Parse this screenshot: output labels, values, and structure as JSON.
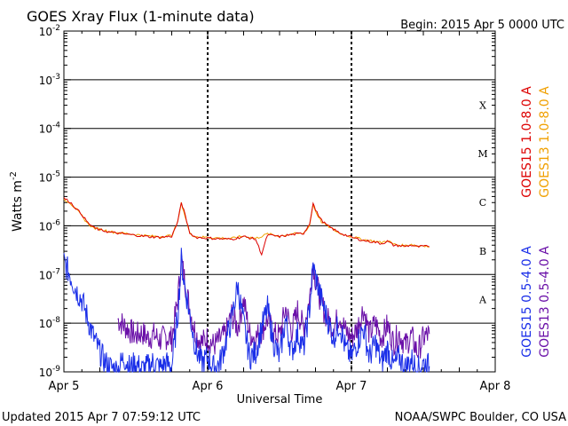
{
  "header": {
    "title": "GOES Xray Flux (1-minute data)",
    "begin": "Begin:  2015 Apr 5 0000 UTC"
  },
  "footer": {
    "updated": "Updated 2015 Apr  7 07:59:12 UTC",
    "credit": "NOAA/SWPC Boulder, CO USA"
  },
  "colors": {
    "goes15_long": "#dd0000",
    "goes13_long": "#f0a000",
    "goes15_short": "#1a2ee8",
    "goes13_short": "#6a10a8",
    "grid": "#000000"
  },
  "chart_data": {
    "type": "line",
    "title": "GOES Xray Flux (1-minute data)",
    "xlabel": "Universal Time",
    "ylabel": "Watts m",
    "ylabel_superscript": "-2",
    "yscale": "log",
    "ylim": [
      1e-09,
      0.01
    ],
    "xlim": [
      0,
      72
    ],
    "x_units": "hours since 2015 Apr 5 0000 UTC",
    "x_ticks": [
      {
        "x": 0,
        "label": "Apr 5"
      },
      {
        "x": 24,
        "label": "Apr 6"
      },
      {
        "x": 48,
        "label": "Apr 7"
      },
      {
        "x": 72,
        "label": "Apr 8"
      }
    ],
    "y_ticks": [
      {
        "exp": -9,
        "base": "10",
        "sup": "-9"
      },
      {
        "exp": -8,
        "base": "10",
        "sup": "-8"
      },
      {
        "exp": -7,
        "base": "10",
        "sup": "-7"
      },
      {
        "exp": -6,
        "base": "10",
        "sup": "-6"
      },
      {
        "exp": -5,
        "base": "10",
        "sup": "-5"
      },
      {
        "exp": -4,
        "base": "10",
        "sup": "-4"
      },
      {
        "exp": -3,
        "base": "10",
        "sup": "-3"
      },
      {
        "exp": -2,
        "base": "10",
        "sup": "-2"
      }
    ],
    "flare_classes": [
      {
        "label": "A",
        "exp": -7.5
      },
      {
        "label": "B",
        "exp": -6.5
      },
      {
        "label": "C",
        "exp": -5.5
      },
      {
        "label": "M",
        "exp": -4.5
      },
      {
        "label": "X",
        "exp": -3.5
      }
    ],
    "day_markers": [
      24,
      48
    ],
    "grid_y": [
      -8,
      -7,
      -6,
      -5,
      -4,
      -3
    ],
    "legend": [
      {
        "label": "GOES15 1.0-8.0 A",
        "color": "#dd0000"
      },
      {
        "label": "GOES13 1.0-8.0 A",
        "color": "#f0a000"
      },
      {
        "label": "GOES15 0.5-4.0 A",
        "color": "#1a2ee8"
      },
      {
        "label": "GOES13 0.5-4.0 A",
        "color": "#6a10a8"
      }
    ],
    "series": [
      {
        "name": "GOES13 1.0-8.0 A",
        "color": "#f0a000",
        "x": [
          0,
          1,
          2,
          3,
          4,
          5,
          6,
          8,
          10,
          12,
          14,
          16,
          18,
          19,
          19.6,
          20,
          21,
          22,
          24,
          26,
          28,
          30,
          32,
          34,
          36,
          38,
          40,
          41,
          41.6,
          42,
          43,
          44,
          46,
          48,
          50,
          52,
          53,
          54,
          55,
          56,
          57,
          58,
          59,
          60,
          61
        ],
        "y": [
          3.5e-06,
          3e-06,
          2.2e-06,
          1.6e-06,
          1.1e-06,
          9e-07,
          8.5e-07,
          7.5e-07,
          7e-07,
          6.6e-07,
          6.2e-07,
          6e-07,
          6.3e-07,
          1.2e-06,
          2.9e-06,
          2e-06,
          7e-07,
          6e-07,
          5.8e-07,
          5.6e-07,
          5.5e-07,
          6.2e-07,
          5.5e-07,
          6.8e-07,
          6.2e-07,
          6.8e-07,
          7e-07,
          1e-06,
          2.8e-06,
          2e-06,
          1.2e-06,
          1e-06,
          7e-07,
          6e-07,
          5.2e-07,
          4.8e-07,
          4.5e-07,
          5e-07,
          4.2e-07,
          4e-07,
          3.9e-07,
          4.2e-07,
          3.8e-07,
          4e-07,
          3.7e-07
        ]
      },
      {
        "name": "GOES15 1.0-8.0 A",
        "color": "#dd0000",
        "x": [
          0,
          1,
          2,
          3,
          4,
          5,
          6,
          8,
          10,
          12,
          14,
          16,
          18,
          19,
          19.6,
          20,
          21,
          22,
          24,
          26,
          28,
          30,
          32,
          33,
          34,
          36,
          38,
          40,
          41,
          41.6,
          42,
          43,
          44,
          46,
          48,
          50,
          52,
          53,
          54,
          55,
          56,
          57,
          58,
          59,
          60,
          61
        ],
        "y": [
          3.7e-06,
          3.1e-06,
          2.3e-06,
          1.7e-06,
          1.15e-06,
          9.2e-07,
          8.2e-07,
          7.3e-07,
          6.8e-07,
          6.4e-07,
          6e-07,
          5.8e-07,
          6.1e-07,
          1.2e-06,
          3e-06,
          2.1e-06,
          7.2e-07,
          5.8e-07,
          5.6e-07,
          5.4e-07,
          5.3e-07,
          6e-07,
          5.3e-07,
          2.6e-07,
          6.5e-07,
          6e-07,
          6.6e-07,
          7e-07,
          1.1e-06,
          3e-06,
          2.1e-06,
          1.3e-06,
          1e-06,
          7.2e-07,
          5.8e-07,
          5e-07,
          4.6e-07,
          4.3e-07,
          4.8e-07,
          4e-07,
          3.9e-07,
          3.8e-07,
          4e-07,
          3.7e-07,
          3.8e-07,
          3.7e-07
        ]
      },
      {
        "name": "GOES13 0.5-4.0 A",
        "color": "#6a10a8",
        "x": [
          9,
          10,
          11,
          12,
          13,
          14,
          15,
          16,
          17,
          18,
          19,
          19.6,
          20,
          21,
          22,
          23,
          24,
          25,
          26,
          27,
          28,
          29,
          30,
          31,
          32,
          33,
          34,
          35,
          36,
          37,
          38,
          39,
          40,
          41,
          41.6,
          42,
          43,
          44,
          45,
          46,
          47,
          48,
          49,
          50,
          51,
          52,
          53,
          54,
          55,
          56,
          57,
          58,
          59,
          60,
          61
        ],
        "y": [
          1.2e-08,
          9e-09,
          7e-09,
          5.5e-09,
          6.5e-09,
          5e-09,
          5.8e-09,
          4.5e-09,
          5.2e-09,
          4.8e-09,
          3e-08,
          2e-07,
          1e-07,
          2e-08,
          6e-09,
          4e-09,
          5e-09,
          3.5e-09,
          4.5e-09,
          6e-09,
          1.5e-08,
          8e-09,
          3e-08,
          6e-09,
          5e-09,
          7e-09,
          1.2e-08,
          6e-09,
          5.5e-09,
          2e-08,
          7e-09,
          1.8e-08,
          8e-09,
          3e-08,
          1.8e-07,
          8e-08,
          2.5e-08,
          1.2e-08,
          8e-09,
          1.5e-08,
          7e-09,
          5e-09,
          8e-09,
          2e-08,
          6e-09,
          1e-08,
          5e-09,
          9e-09,
          4e-09,
          6e-09,
          3.5e-09,
          5.5e-09,
          2.5e-09,
          5e-09,
          6e-09
        ]
      },
      {
        "name": "GOES15 0.5-4.0 A",
        "color": "#1a2ee8",
        "x": [
          0,
          1,
          2,
          3,
          4,
          5,
          6,
          7,
          8,
          9,
          10,
          11,
          12,
          13,
          14,
          15,
          16,
          17,
          18,
          19,
          19.6,
          20,
          21,
          22,
          23,
          24,
          25,
          26,
          27,
          28,
          29,
          30,
          31,
          32,
          33,
          34,
          35,
          36,
          37,
          38,
          39,
          40,
          41,
          41.6,
          42,
          43,
          44,
          45,
          46,
          47,
          48,
          49,
          50,
          51,
          52,
          53,
          54,
          55,
          56,
          57,
          58,
          59,
          60,
          61
        ],
        "y": [
          1.8e-07,
          1e-07,
          5e-08,
          3e-08,
          1.2e-08,
          5e-09,
          2.5e-09,
          1.5e-09,
          1.2e-09,
          1.1e-09,
          2e-09,
          1.2e-09,
          1.5e-09,
          1.1e-09,
          1.3e-09,
          1.6e-09,
          1.2e-09,
          1.5e-09,
          1.3e-09,
          1.5e-08,
          2e-07,
          8e-08,
          1.5e-08,
          3e-09,
          1.5e-09,
          2e-09,
          1.2e-09,
          1.5e-09,
          4e-09,
          1.2e-08,
          6e-08,
          1e-08,
          2e-09,
          2.5e-09,
          8e-09,
          2e-08,
          4e-09,
          2e-09,
          1.2e-08,
          2.5e-09,
          6e-09,
          3e-09,
          2e-08,
          1.5e-07,
          9e-08,
          3e-08,
          1.2e-08,
          5e-09,
          1e-08,
          3e-09,
          2e-09,
          4e-09,
          8e-09,
          2e-09,
          4e-09,
          1.5e-09,
          3e-09,
          1.3e-09,
          2e-09,
          1.2e-09,
          1.8e-09,
          1.1e-09,
          1.5e-09,
          1.3e-09
        ]
      }
    ]
  }
}
